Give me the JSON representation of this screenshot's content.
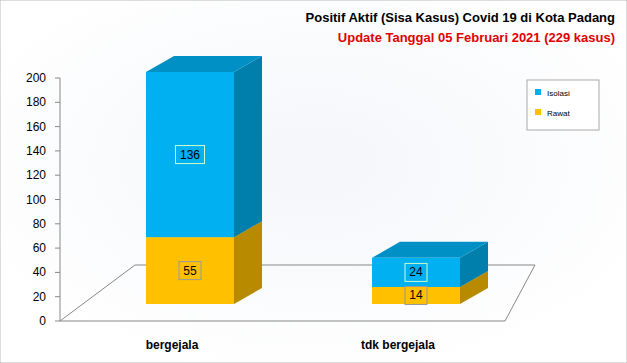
{
  "chart_data": {
    "type": "bar",
    "title": "Positif Aktif  (Sisa Kasus) Covid 19 di Kota Padang",
    "subtitle": "Update Tanggal  05 Februari 2021  (229 kasus)",
    "categories": [
      "bergejala",
      "tdk bergejala"
    ],
    "series": [
      {
        "name": "Rawat",
        "color": "#ffc000",
        "values": [
          55,
          14
        ]
      },
      {
        "name": "Isolasi",
        "color": "#00b0f0",
        "values": [
          136,
          24
        ]
      }
    ],
    "ylim": [
      0,
      200
    ],
    "yticks": [
      0,
      20,
      40,
      60,
      80,
      100,
      120,
      140,
      160,
      180,
      200
    ],
    "stacked": true,
    "data_labels": true,
    "legend": "top-right",
    "grid": false
  }
}
